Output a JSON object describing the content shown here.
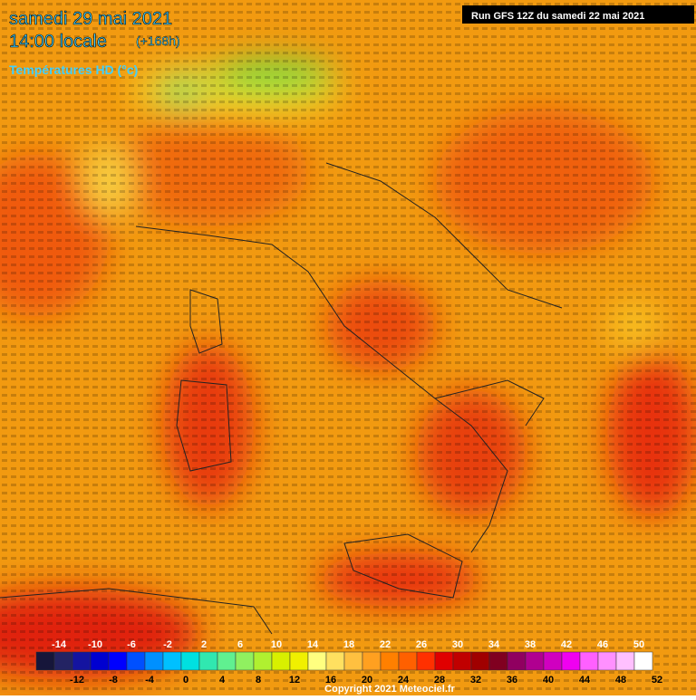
{
  "header": {
    "date": "samedi 29 mai 2021",
    "time": "14:00 locale",
    "lead": "(+168h)",
    "variable": "Températures HD (°c)",
    "run": "Run GFS 12Z du samedi 22 mai 2021"
  },
  "legend": {
    "values": [
      -14,
      -12,
      -10,
      -8,
      -6,
      -4,
      -2,
      0,
      2,
      4,
      6,
      8,
      10,
      12,
      14,
      16,
      18,
      20,
      22,
      24,
      26,
      28,
      30,
      32,
      34,
      36,
      38,
      40,
      42,
      44,
      46,
      48,
      50,
      52
    ],
    "colors": [
      "#16163a",
      "#232363",
      "#1414a0",
      "#0000d0",
      "#0000ff",
      "#0050ff",
      "#0090ff",
      "#00c0ff",
      "#00e0e0",
      "#30e8b0",
      "#60f090",
      "#90f060",
      "#b0f030",
      "#d8f000",
      "#f0f000",
      "#ffff80",
      "#ffe060",
      "#ffc040",
      "#ffa020",
      "#ff8000",
      "#ff6000",
      "#ff3000",
      "#e00000",
      "#c00000",
      "#a00000",
      "#800020",
      "#900060",
      "#b00090",
      "#d000c0",
      "#f000f0",
      "#ff60ff",
      "#ff90ff",
      "#ffc0ff",
      "#ffffff"
    ]
  },
  "footer": {
    "copyright": "Copyright 2021 Meteociel.fr"
  }
}
